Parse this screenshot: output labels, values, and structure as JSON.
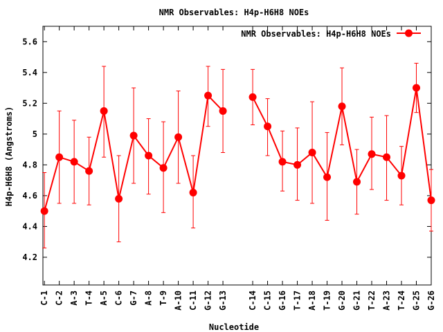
{
  "chart_data": {
    "type": "line",
    "title": "NMR Observables: H4p-H6H8 NOEs",
    "xlabel": "Nucleotide",
    "ylabel": "H4p-H6H8 (Angstroms)",
    "ylim": [
      4.02,
      5.7
    ],
    "yticks": [
      "4.2",
      "4.4",
      "4.6",
      "4.8",
      "5",
      "5.2",
      "5.4",
      "5.6"
    ],
    "ytick_values": [
      4.2,
      4.4,
      4.6,
      4.8,
      5.0,
      5.2,
      5.4,
      5.6
    ],
    "xlim": [
      0.9,
      26
    ],
    "legend_position": "top-right",
    "grid": false,
    "color": "#ff0000",
    "categories": [
      "C-1",
      "C-2",
      "A-3",
      "T-4",
      "A-5",
      "C-6",
      "G-7",
      "A-8",
      "T-9",
      "A-10",
      "C-11",
      "G-12",
      "G-13",
      "C-14",
      "C-15",
      "G-16",
      "T-17",
      "A-18",
      "T-19",
      "G-20",
      "G-21",
      "T-22",
      "A-23",
      "T-24",
      "G-25",
      "G-26"
    ],
    "category_x": [
      1,
      2,
      3,
      4,
      5,
      6,
      7,
      8,
      9,
      10,
      11,
      12,
      13,
      15,
      16,
      17,
      18,
      19,
      20,
      21,
      22,
      23,
      24,
      25,
      26,
      27
    ],
    "series": [
      {
        "name": "NMR Observables: H4p-H6H8 NOEs",
        "segments": [
          {
            "x": [
              1,
              2,
              3,
              4,
              5,
              6,
              7,
              8,
              9,
              10,
              11,
              12,
              13
            ],
            "values": [
              4.5,
              4.85,
              4.82,
              4.76,
              5.15,
              4.58,
              4.99,
              4.86,
              4.78,
              4.98,
              4.62,
              5.25,
              5.15
            ],
            "err_low": [
              4.26,
              4.55,
              4.55,
              4.54,
              4.85,
              4.3,
              4.68,
              4.61,
              4.49,
              4.68,
              4.39,
              5.05,
              4.88
            ],
            "err_high": [
              4.75,
              5.15,
              5.09,
              4.98,
              5.44,
              4.86,
              5.3,
              5.1,
              5.08,
              5.28,
              4.86,
              5.44,
              5.42
            ]
          },
          {
            "x": [
              15,
              16,
              17,
              18,
              19,
              20,
              21,
              22,
              23,
              24,
              25,
              26,
              27
            ],
            "values": [
              5.24,
              5.05,
              4.82,
              4.8,
              4.88,
              4.72,
              5.18,
              4.69,
              4.87,
              4.85,
              4.73,
              5.3,
              4.57
            ],
            "err_low": [
              5.06,
              4.86,
              4.63,
              4.57,
              4.55,
              4.44,
              4.93,
              4.48,
              4.64,
              4.57,
              4.54,
              5.14,
              4.37
            ],
            "err_high": [
              5.42,
              5.23,
              5.02,
              5.04,
              5.21,
              5.01,
              5.43,
              4.9,
              5.11,
              5.12,
              4.92,
              5.46,
              4.77
            ]
          }
        ]
      }
    ]
  }
}
